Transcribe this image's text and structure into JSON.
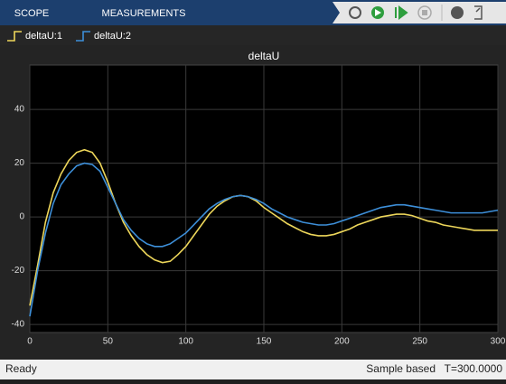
{
  "toolbar": {
    "tabs": [
      "SCOPE",
      "MEASUREMENTS"
    ]
  },
  "chart_data": {
    "type": "line",
    "title": "deltaU",
    "x": [
      0,
      5,
      10,
      15,
      20,
      25,
      30,
      35,
      40,
      45,
      50,
      55,
      60,
      65,
      70,
      75,
      80,
      85,
      90,
      95,
      100,
      105,
      110,
      115,
      120,
      125,
      130,
      135,
      140,
      145,
      150,
      155,
      160,
      165,
      170,
      175,
      180,
      185,
      190,
      195,
      200,
      205,
      210,
      215,
      220,
      225,
      230,
      235,
      240,
      245,
      250,
      255,
      260,
      265,
      270,
      275,
      280,
      285,
      290,
      295,
      300
    ],
    "series": [
      {
        "name": "deltaU:1",
        "color": "#edd65a",
        "values": [
          -33,
          -18,
          -2,
          9,
          16,
          21,
          24,
          25,
          24,
          20,
          13,
          5,
          -2,
          -7,
          -11,
          -14,
          -16,
          -17,
          -16.5,
          -14,
          -11,
          -7,
          -3,
          1,
          4,
          6,
          7.5,
          8,
          7.5,
          6,
          3.5,
          1.5,
          -0.5,
          -2.5,
          -4,
          -5.5,
          -6.5,
          -7,
          -7,
          -6.5,
          -5.5,
          -4.5,
          -3,
          -2,
          -1,
          0,
          0.5,
          1,
          1,
          0.5,
          -0.5,
          -1.5,
          -2,
          -3,
          -3.5,
          -4,
          -4.5,
          -5,
          -5,
          -5,
          -5
        ]
      },
      {
        "name": "deltaU:2",
        "color": "#3d8fd9",
        "values": [
          -37,
          -20,
          -6,
          5,
          12,
          16,
          19,
          20,
          19.5,
          17,
          11,
          5,
          -1,
          -5,
          -8,
          -10,
          -11,
          -11,
          -10,
          -8,
          -6,
          -3,
          0,
          3,
          5,
          6.5,
          7.5,
          8,
          7.5,
          6.5,
          5,
          3,
          1.5,
          0,
          -1,
          -2,
          -2.5,
          -3,
          -3,
          -2.5,
          -1.5,
          -0.5,
          0.5,
          1.5,
          2.5,
          3.5,
          4,
          4.5,
          4.5,
          4,
          3.5,
          3,
          2.5,
          2,
          1.5,
          1.5,
          1.5,
          1.5,
          1.5,
          2,
          2.5
        ]
      }
    ],
    "xlim": [
      0,
      300
    ],
    "xticks": [
      0,
      50,
      100,
      150,
      200,
      250,
      300
    ],
    "ylim": [
      -43,
      56.5
    ],
    "yticks": [
      -40,
      -20,
      0,
      20,
      40
    ],
    "grid": true
  },
  "status": {
    "left": "Ready",
    "mode": "Sample based",
    "time": "T=300.0000"
  }
}
